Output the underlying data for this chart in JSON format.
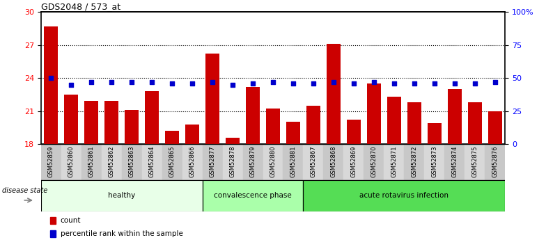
{
  "title": "GDS2048 / 573_at",
  "samples": [
    "GSM52859",
    "GSM52860",
    "GSM52861",
    "GSM52862",
    "GSM52863",
    "GSM52864",
    "GSM52865",
    "GSM52866",
    "GSM52877",
    "GSM52878",
    "GSM52879",
    "GSM52880",
    "GSM52881",
    "GSM52867",
    "GSM52868",
    "GSM52869",
    "GSM52870",
    "GSM52871",
    "GSM52872",
    "GSM52873",
    "GSM52874",
    "GSM52875",
    "GSM52876"
  ],
  "counts": [
    28.7,
    22.5,
    21.9,
    21.9,
    21.1,
    22.8,
    19.2,
    19.8,
    26.2,
    18.6,
    23.2,
    21.2,
    20.0,
    21.5,
    27.1,
    20.2,
    23.5,
    22.3,
    21.8,
    19.9,
    23.0,
    21.8,
    21.0
  ],
  "percentiles": [
    50,
    45,
    47,
    47,
    47,
    47,
    46,
    46,
    47,
    45,
    46,
    47,
    46,
    46,
    47,
    46,
    47,
    46,
    46,
    46,
    46,
    46,
    47
  ],
  "groups": [
    {
      "label": "healthy",
      "start": 0,
      "end": 8,
      "color": "#e8ffe8"
    },
    {
      "label": "convalescence phase",
      "start": 8,
      "end": 13,
      "color": "#aaffaa"
    },
    {
      "label": "acute rotavirus infection",
      "start": 13,
      "end": 23,
      "color": "#55dd55"
    }
  ],
  "ylim_left": [
    18,
    30
  ],
  "ylim_right": [
    0,
    100
  ],
  "yticks_left": [
    18,
    21,
    24,
    27,
    30
  ],
  "yticks_right": [
    0,
    25,
    50,
    75,
    100
  ],
  "ytick_labels_right": [
    "0",
    "25",
    "50",
    "75",
    "100%"
  ],
  "bar_color": "#cc0000",
  "marker_color": "#0000cc",
  "xtick_bg": "#d0d0d0",
  "disease_state_label": "disease state"
}
